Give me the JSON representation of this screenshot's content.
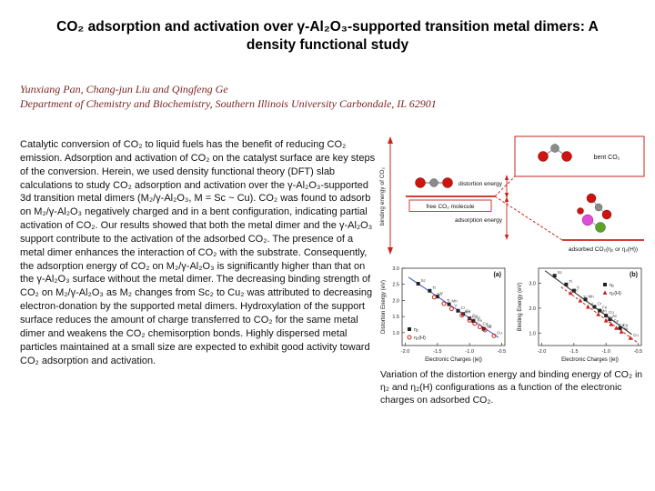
{
  "slide": {
    "title": "CO₂ adsorption and activation over γ-Al₂O₃-supported transition metal dimers: A density functional study",
    "authors": "Yunxiang Pan, Chang-jun Liu and Qingfeng Ge",
    "affiliation": "Department of Chemistry and Biochemistry, Southern Illinois University Carbondale, IL 62901",
    "abstract": "Catalytic conversion of CO₂ to liquid fuels has the benefit of reducing CO₂ emission. Adsorption and activation of CO₂ on the catalyst surface are key steps of the conversion. Herein, we used density functional theory (DFT) slab calculations to study CO₂ adsorption and activation over the γ-Al₂O₃-supported 3d transition metal dimers (M₂/γ-Al₂O₃, M = Sc ~ Cu). CO₂ was found to adsorb on M₂/γ-Al₂O₃ negatively charged and in a bent configuration, indicating partial activation of CO₂. Our results showed that both the metal dimer and the γ-Al₂O₃ support contribute to the activation of the adsorbed CO₂. The presence of a metal dimer enhances the interaction of CO₂ with the substrate. Consequently, the adsorption energy of CO₂ on M₂/γ-Al₂O₃ is significantly higher than that on the γ-Al₂O₃ surface without the metal dimer. The decreasing binding strength of CO₂ on M₂/γ-Al₂O₃ as M₂ changes from Sc₂ to Cu₂ was attributed to decreasing electron-donation by the supported metal dimers. Hydroxylation of the support surface reduces the amount of charge transferred to CO₂ for the same metal dimer and weakens the CO₂ chemisorption bonds. Highly dispersed metal particles maintained at a small size are expected to exhibit good activity toward CO₂ adsorption and activation.",
    "caption": "Variation of the distortion energy and binding energy of CO₂ in η₂ and η₂(H) configurations as a function of the electronic charges on adsorbed CO₂."
  },
  "colors": {
    "accent_red": "#c9261d",
    "author_text": "#7b2424",
    "trend_blue": "#3a50c8"
  },
  "energy_diagram": {
    "axis_label": "binding energy of CO₂",
    "levels": {
      "bent": "bent CO₂",
      "free": "free CO₂ molecule",
      "adsorbed": "adsorbed CO₂(η₂ or η₂(H))"
    },
    "arrows": {
      "distortion": "distortion energy",
      "adsorption": "adsorption energy"
    }
  },
  "chart_data": [
    {
      "type": "scatter",
      "panel": "(a)",
      "xlabel": "Electronic Charges (|e|)",
      "ylabel": "Distortion Energy (eV)",
      "xlim": [
        -2.05,
        -0.45
      ],
      "ylim": [
        0.6,
        3.0
      ],
      "x_ticks": [
        -2.0,
        -1.5,
        -1.0,
        -0.5
      ],
      "y_ticks": [
        1.0,
        1.5,
        2.0,
        2.5,
        3.0
      ],
      "legend_pos": "bottom-left",
      "series": [
        {
          "name": "η₂",
          "marker": "square",
          "color": "#222222",
          "points": [
            {
              "label": "Sc",
              "x": -1.8,
              "y": 2.52
            },
            {
              "label": "Ti",
              "x": -1.62,
              "y": 2.3
            },
            {
              "label": "V",
              "x": -1.5,
              "y": 2.12
            },
            {
              "label": "Mn",
              "x": -1.32,
              "y": 1.88
            },
            {
              "label": "Cr",
              "x": -1.18,
              "y": 1.68
            },
            {
              "label": "Fe",
              "x": -1.1,
              "y": 1.58
            },
            {
              "label": "Co",
              "x": -1.0,
              "y": 1.44
            },
            {
              "label": "Ni",
              "x": -0.94,
              "y": 1.36
            },
            {
              "label": "Cu",
              "x": -0.78,
              "y": 1.12
            }
          ]
        },
        {
          "name": "η₂(H)",
          "marker": "circle",
          "color": "#c9261d",
          "points": [
            {
              "label": "Sc",
              "x": -1.55,
              "y": 2.1
            },
            {
              "label": "Ti",
              "x": -1.4,
              "y": 1.9
            },
            {
              "label": "V",
              "x": -1.28,
              "y": 1.74
            },
            {
              "label": "Mn",
              "x": -1.12,
              "y": 1.54
            },
            {
              "label": "Cr",
              "x": -1.0,
              "y": 1.38
            },
            {
              "label": "Fe",
              "x": -0.92,
              "y": 1.28
            },
            {
              "label": "Co",
              "x": -0.84,
              "y": 1.18
            },
            {
              "label": "Ni",
              "x": -0.76,
              "y": 1.08
            },
            {
              "label": "Cu",
              "x": -0.62,
              "y": 0.9
            }
          ]
        }
      ],
      "trend_lines": [
        {
          "color": "#3a50c8",
          "style": "solid",
          "from": [
            -1.95,
            2.72
          ],
          "to": [
            -0.55,
            0.85
          ]
        }
      ]
    },
    {
      "type": "scatter",
      "panel": "(b)",
      "xlabel": "Electronic Charges (|e|)",
      "ylabel": "Binding Energy (eV)",
      "xlim": [
        -2.05,
        -0.45
      ],
      "ylim": [
        0.5,
        3.6
      ],
      "x_ticks": [
        -2.0,
        -1.5,
        -1.0,
        -0.5
      ],
      "y_ticks": [
        1.0,
        2.0,
        3.0
      ],
      "legend_pos": "top-right",
      "series": [
        {
          "name": "η₂",
          "marker": "square",
          "color": "#222222",
          "points": [
            {
              "label": "Sc",
              "x": -1.8,
              "y": 3.3
            },
            {
              "label": "Ti",
              "x": -1.62,
              "y": 2.95
            },
            {
              "label": "V",
              "x": -1.5,
              "y": 2.7
            },
            {
              "label": "Mn",
              "x": -1.32,
              "y": 2.35
            },
            {
              "label": "Cr",
              "x": -1.18,
              "y": 2.05
            },
            {
              "label": "Fe",
              "x": -1.1,
              "y": 1.9
            },
            {
              "label": "Co",
              "x": -1.0,
              "y": 1.7
            },
            {
              "label": "Ni",
              "x": -0.94,
              "y": 1.55
            },
            {
              "label": "Cu",
              "x": -0.78,
              "y": 1.2
            }
          ]
        },
        {
          "name": "η₂(H)",
          "marker": "triangle",
          "color": "#c9261d",
          "points": [
            {
              "label": "Sc",
              "x": -1.55,
              "y": 2.6
            },
            {
              "label": "Ti",
              "x": -1.4,
              "y": 2.3
            },
            {
              "label": "V",
              "x": -1.28,
              "y": 2.05
            },
            {
              "label": "Mn",
              "x": -1.12,
              "y": 1.75
            },
            {
              "label": "Cr",
              "x": -1.0,
              "y": 1.5
            },
            {
              "label": "Fe",
              "x": -0.92,
              "y": 1.35
            },
            {
              "label": "Co",
              "x": -0.84,
              "y": 1.2
            },
            {
              "label": "Ni",
              "x": -0.76,
              "y": 1.05
            },
            {
              "label": "Cu",
              "x": -0.62,
              "y": 0.8
            }
          ]
        }
      ],
      "trend_lines": [
        {
          "color": "#222222",
          "style": "solid",
          "from": [
            -1.95,
            3.5
          ],
          "to": [
            -0.6,
            0.95
          ]
        },
        {
          "color": "#c9261d",
          "style": "dashed",
          "from": [
            -1.7,
            2.85
          ],
          "to": [
            -0.5,
            0.6
          ]
        }
      ]
    }
  ]
}
